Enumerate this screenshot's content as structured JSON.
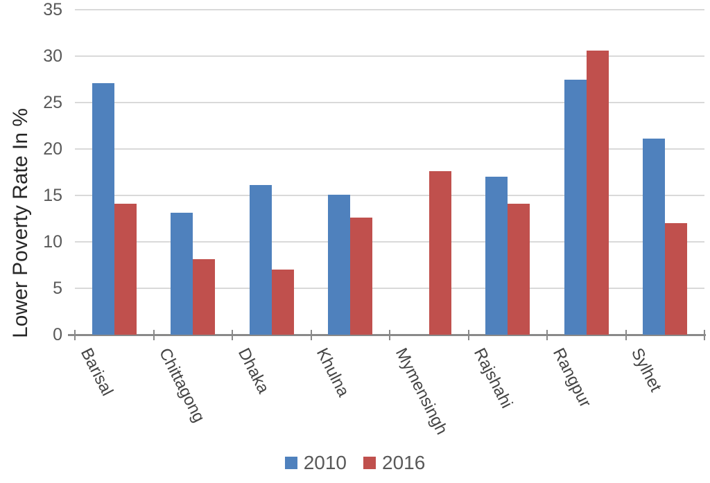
{
  "chart_data": {
    "type": "bar",
    "title": "",
    "ylabel": "Lower Poverty Rate In %",
    "xlabel": "",
    "categories": [
      "Barisal",
      "Chittagong",
      "Dhaka",
      "Khulna",
      "Mymensingh",
      "Rajshahi",
      "Rangpur",
      "Sylhet"
    ],
    "series": [
      {
        "name": "2010",
        "color": "#4F81BD",
        "values": [
          27.1,
          13.1,
          16.1,
          15.1,
          null,
          17.0,
          27.5,
          21.1
        ]
      },
      {
        "name": "2016",
        "color": "#C0504D",
        "values": [
          14.1,
          8.1,
          7.0,
          12.6,
          17.6,
          14.1,
          30.6,
          12.0
        ]
      }
    ],
    "y_ticks": [
      0,
      5,
      10,
      15,
      20,
      25,
      30,
      35
    ],
    "ylim": [
      0,
      35
    ],
    "grid": true,
    "legend_position": "bottom",
    "colors": {
      "gridline": "#d9d9d9",
      "axis": "#898989",
      "tick_label": "#595959",
      "category_label": "#444444",
      "axis_title": "#262626"
    }
  }
}
